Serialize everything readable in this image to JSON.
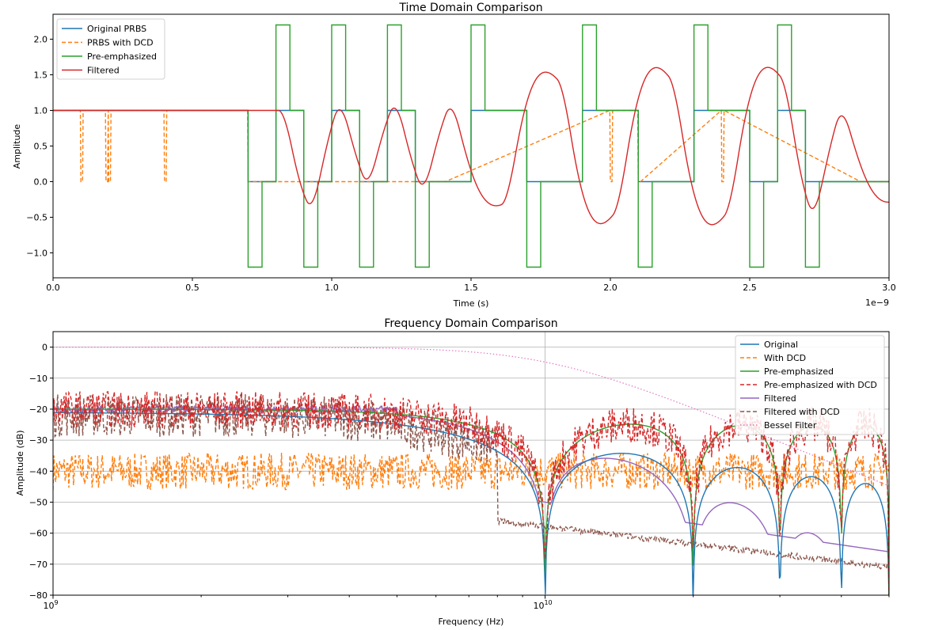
{
  "figure": {
    "top_title": "Time Domain Comparison",
    "bottom_title": "Frequency Domain Comparison"
  },
  "chart_data": [
    {
      "type": "line",
      "title": "Time Domain Comparison",
      "xlabel": "Time (s)",
      "ylabel": "Amplitude",
      "x_offset_text": "1e−9",
      "xlim": [
        0,
        3.0
      ],
      "ylim": [
        -1.35,
        2.35
      ],
      "x_unit_scale": 1e-09,
      "xticks": [
        0.0,
        0.5,
        1.0,
        1.5,
        2.0,
        2.5,
        3.0
      ],
      "xtick_labels": [
        "0.0",
        "0.5",
        "1.0",
        "1.5",
        "2.0",
        "2.5",
        "3.0"
      ],
      "yticks": [
        -1.0,
        -0.5,
        0.0,
        0.5,
        1.0,
        1.5,
        2.0
      ],
      "ytick_labels": [
        "−1.0",
        "−0.5",
        "0.0",
        "0.5",
        "1.0",
        "1.5",
        "2.0"
      ],
      "grid": false,
      "legend_position": "upper left",
      "bits": [
        1,
        1,
        1,
        1,
        1,
        1,
        1,
        0,
        1,
        0,
        1,
        0,
        1,
        0,
        0,
        1,
        1,
        0,
        0,
        1,
        1,
        0,
        0,
        1,
        1,
        0,
        1,
        0,
        0,
        0
      ],
      "bit_period": 0.1,
      "series": [
        {
          "name": "Original PRBS",
          "color": "#1f77b4",
          "style": "solid",
          "kind": "nrz"
        },
        {
          "name": "PRBS with DCD",
          "color": "#ff7f0e",
          "style": "dashed",
          "kind": "dcd",
          "glitches": [
            0.1,
            0.19,
            0.2,
            0.4,
            0.7,
            1.4,
            2.0,
            2.1,
            2.4,
            2.9,
            2.92
          ]
        },
        {
          "name": "Pre-emphasized",
          "color": "#2ca02c",
          "style": "solid",
          "kind": "preemph",
          "high": 2.2,
          "low": -1.2,
          "emph_width": 0.05
        },
        {
          "name": "Filtered",
          "color": "#d62728",
          "style": "solid",
          "kind": "filtered"
        }
      ]
    },
    {
      "type": "line",
      "title": "Frequency Domain Comparison",
      "xlabel": "Frequency (Hz)",
      "ylabel": "Amplitude (dB)",
      "x_scale": "log",
      "xlim": [
        1000000000.0,
        50000000000.0
      ],
      "ylim": [
        -80,
        5
      ],
      "xtick_major": [
        {
          "base": "10",
          "exp": "9",
          "value": 1000000000.0
        },
        {
          "base": "10",
          "exp": "10",
          "value": 10000000000.0
        }
      ],
      "yticks": [
        0,
        -10,
        -20,
        -30,
        -40,
        -50,
        -60,
        -70,
        -80
      ],
      "ytick_labels": [
        "0",
        "−10",
        "−20",
        "−30",
        "−40",
        "−50",
        "−60",
        "−70",
        "−80"
      ],
      "grid": true,
      "legend_position": "upper right",
      "bit_rate": 10000000000.0,
      "series": [
        {
          "name": "Original",
          "color": "#1f77b4",
          "style": "solid",
          "kind": "sinc",
          "level_db": -21
        },
        {
          "name": "With DCD",
          "color": "#ff7f0e",
          "style": "dashed",
          "kind": "dcd_noise",
          "level_db": -40
        },
        {
          "name": "Pre-emphasized",
          "color": "#2ca02c",
          "style": "solid",
          "kind": "preemph",
          "level_db": -20
        },
        {
          "name": "Pre-emphasized with DCD",
          "color": "#d62728",
          "style": "dashed",
          "kind": "preemph_noise",
          "level_db": -20
        },
        {
          "name": "Filtered",
          "color": "#9467bd",
          "style": "solid",
          "kind": "filtered",
          "level_db": -20
        },
        {
          "name": "Filtered with DCD",
          "color": "#8c564b",
          "style": "dashed",
          "kind": "filtered_noise",
          "level_db": -22
        },
        {
          "name": "Bessel Filter",
          "color": "#e377c2",
          "style": "dotted",
          "kind": "bessel",
          "level_db": 0
        }
      ]
    }
  ]
}
